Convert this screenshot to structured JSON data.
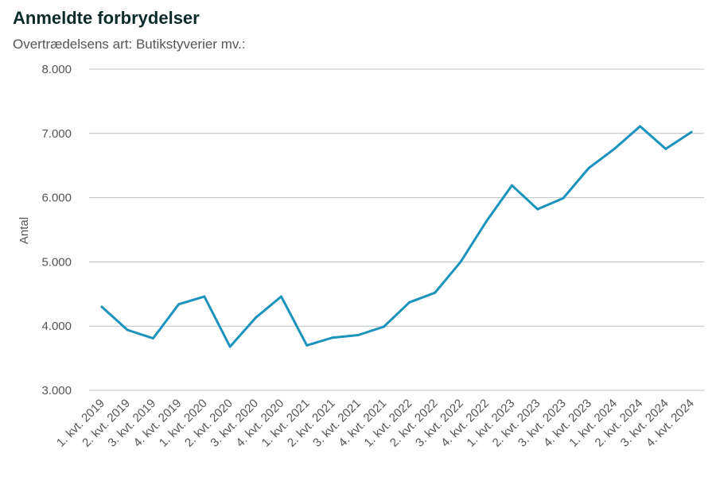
{
  "chart_data": {
    "type": "line",
    "title": "Anmeldte forbrydelser",
    "subtitle": "Overtrædelsens art: Butikstyverier mv.:",
    "xlabel": "",
    "ylabel": "Antal",
    "ylim": [
      3000,
      8000
    ],
    "yticks": [
      3000,
      4000,
      5000,
      6000,
      7000,
      8000
    ],
    "ytick_labels": [
      "3.000",
      "4.000",
      "5.000",
      "6.000",
      "7.000",
      "8.000"
    ],
    "grid": true,
    "categories": [
      "1. kvt. 2019",
      "2. kvt. 2019",
      "3. kvt. 2019",
      "4. kvt. 2019",
      "1. kvt. 2020",
      "2. kvt. 2020",
      "3. kvt. 2020",
      "4. kvt. 2020",
      "1. kvt. 2021",
      "2. kvt. 2021",
      "3. kvt. 2021",
      "4. kvt. 2021",
      "1. kvt. 2022",
      "2. kvt. 2022",
      "3. kvt. 2022",
      "4. kvt. 2022",
      "1. kvt. 2023",
      "2. kvt. 2023",
      "3. kvt. 2023",
      "4. kvt. 2023",
      "1. kvt. 2024",
      "2. kvt. 2024",
      "3. kvt. 2024",
      "4. kvt. 2024"
    ],
    "series": [
      {
        "values": [
          4300,
          3940,
          3810,
          4340,
          4460,
          3680,
          4130,
          4460,
          3700,
          3820,
          3860,
          3990,
          4370,
          4520,
          5000,
          5630,
          6190,
          5820,
          5990,
          6460,
          6760,
          7110,
          6760,
          7020
        ],
        "color": "#1a93bd"
      }
    ]
  }
}
